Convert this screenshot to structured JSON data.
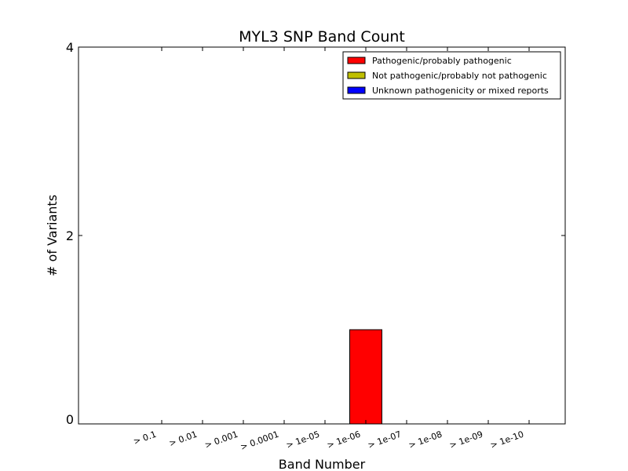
{
  "chart_data": {
    "type": "bar",
    "title": "MYL3 SNP Band Count",
    "xlabel": "Band Number",
    "ylabel": "# of Variants",
    "categories": [
      "> 0.1",
      "> 0.01",
      "> 0.001",
      "> 0.0001",
      "> 1e-05",
      "> 1e-06",
      "> 1e-07",
      "> 1e-08",
      "> 1e-09",
      "> 1e-10"
    ],
    "series": [
      {
        "name": "Pathogenic/probably pathogenic",
        "color": "#ff0000",
        "values": [
          0,
          0,
          0,
          0,
          0,
          1,
          0,
          0,
          0,
          0
        ]
      },
      {
        "name": "Not pathogenic/probably not pathogenic",
        "color": "#bfbf00",
        "values": [
          0,
          0,
          0,
          0,
          0,
          0,
          0,
          0,
          0,
          0
        ]
      },
      {
        "name": "Unknown pathogenicity or mixed reports",
        "color": "#0000ff",
        "values": [
          0,
          0,
          0,
          0,
          0,
          0,
          0,
          0,
          0,
          0
        ]
      }
    ],
    "stacked": true,
    "ylim": [
      0,
      4
    ],
    "yticks": [
      0,
      2,
      4
    ],
    "grid": false,
    "legend_position": "top-right"
  }
}
